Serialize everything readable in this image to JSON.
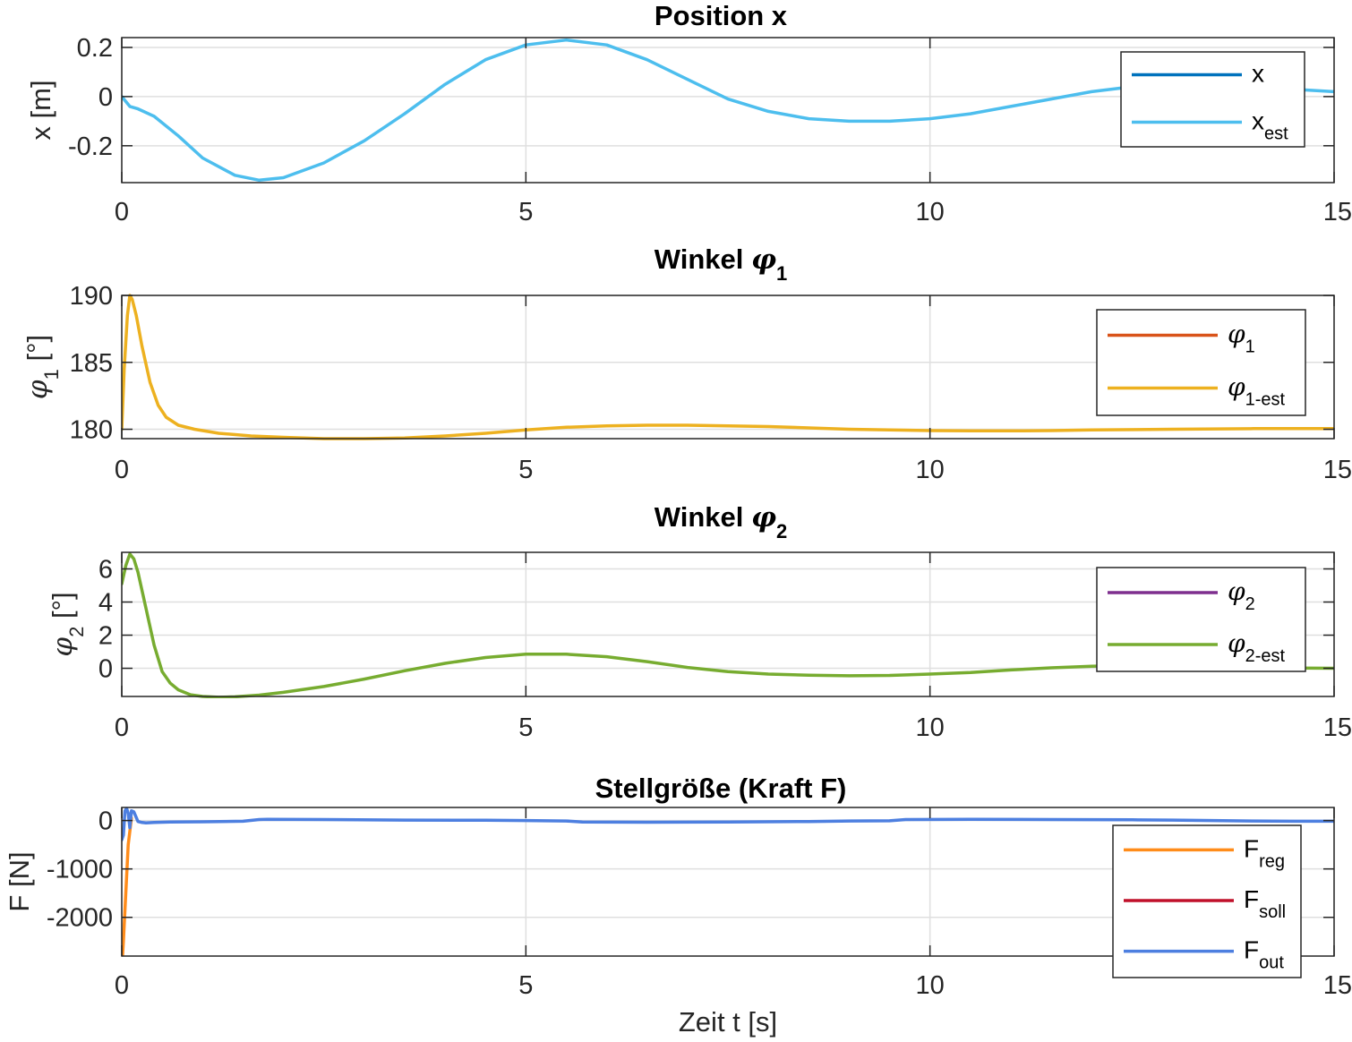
{
  "chart_data": [
    {
      "type": "line",
      "title": "Position x",
      "title_parts": [
        {
          "t": "Position x"
        }
      ],
      "ylabel_parts": [
        {
          "t": "x [m]"
        }
      ],
      "xlabel": "",
      "xlim": [
        0,
        15
      ],
      "ylim": [
        -0.35,
        0.24
      ],
      "xticks": [
        0,
        5,
        10,
        15
      ],
      "xticklabels": [
        "0",
        "5",
        "10",
        "15"
      ],
      "yticks": [
        -0.2,
        0,
        0.2
      ],
      "yticklabels": [
        "-0.2",
        "0",
        "0.2"
      ],
      "grid": true,
      "legend_position": "top-right",
      "series": [
        {
          "name_parts": [
            {
              "t": "x"
            }
          ],
          "color": "#0072BD",
          "visible": false,
          "x": [
            0,
            0.1,
            0.2,
            0.4,
            0.7,
            1.0,
            1.4,
            1.7,
            2.0,
            2.5,
            3.0,
            3.5,
            4.0,
            4.5,
            5.0,
            5.5,
            6.0,
            6.5,
            7.0,
            7.5,
            8.0,
            8.5,
            9.0,
            9.5,
            10.0,
            10.5,
            11.0,
            11.5,
            12.0,
            12.5,
            13.0,
            13.5,
            14.0,
            14.5,
            15.0
          ],
          "y": [
            0.0,
            -0.04,
            -0.05,
            -0.08,
            -0.16,
            -0.25,
            -0.32,
            -0.34,
            -0.33,
            -0.27,
            -0.18,
            -0.07,
            0.05,
            0.15,
            0.21,
            0.23,
            0.21,
            0.15,
            0.07,
            -0.01,
            -0.06,
            -0.09,
            -0.1,
            -0.1,
            -0.09,
            -0.07,
            -0.04,
            -0.01,
            0.02,
            0.04,
            0.045,
            0.045,
            0.04,
            0.03,
            0.02
          ]
        },
        {
          "name_parts": [
            {
              "t": "x"
            },
            {
              "t": "est",
              "sub": true
            }
          ],
          "color": "#4DBEEE",
          "visible": true,
          "x": [
            0,
            0.1,
            0.2,
            0.4,
            0.7,
            1.0,
            1.4,
            1.7,
            2.0,
            2.5,
            3.0,
            3.5,
            4.0,
            4.5,
            5.0,
            5.5,
            6.0,
            6.5,
            7.0,
            7.5,
            8.0,
            8.5,
            9.0,
            9.5,
            10.0,
            10.5,
            11.0,
            11.5,
            12.0,
            12.5,
            13.0,
            13.5,
            14.0,
            14.5,
            15.0
          ],
          "y": [
            0.0,
            -0.04,
            -0.05,
            -0.08,
            -0.16,
            -0.25,
            -0.32,
            -0.34,
            -0.33,
            -0.27,
            -0.18,
            -0.07,
            0.05,
            0.15,
            0.21,
            0.23,
            0.21,
            0.15,
            0.07,
            -0.01,
            -0.06,
            -0.09,
            -0.1,
            -0.1,
            -0.09,
            -0.07,
            -0.04,
            -0.01,
            0.02,
            0.04,
            0.045,
            0.045,
            0.04,
            0.03,
            0.02
          ]
        }
      ]
    },
    {
      "type": "line",
      "title": "Winkel φ1",
      "title_parts": [
        {
          "t": "Winkel "
        },
        {
          "t": "φ",
          "greek": true
        },
        {
          "t": "1",
          "sub": true
        }
      ],
      "ylabel_parts": [
        {
          "t": "φ",
          "greek": true
        },
        {
          "t": "1",
          "sub": true
        },
        {
          "t": " [°]"
        }
      ],
      "xlabel": "",
      "xlim": [
        0,
        15
      ],
      "ylim": [
        179.3,
        190.0
      ],
      "xticks": [
        0,
        5,
        10,
        15
      ],
      "xticklabels": [
        "0",
        "5",
        "10",
        "15"
      ],
      "yticks": [
        180,
        185,
        190
      ],
      "yticklabels": [
        "180",
        "185",
        "190"
      ],
      "grid": true,
      "legend_position": "top-right",
      "series": [
        {
          "name_parts": [
            {
              "t": "φ",
              "greek": true
            },
            {
              "t": "1",
              "sub": true
            }
          ],
          "color": "#D95319",
          "visible": false,
          "x": [
            0,
            0.03,
            0.07,
            0.1,
            0.13,
            0.18,
            0.25,
            0.35,
            0.45,
            0.55,
            0.7,
            0.9,
            1.2,
            1.6,
            2.0,
            2.5,
            3.0,
            3.5,
            4.0,
            4.5,
            5.0,
            5.5,
            6.0,
            6.5,
            7.0,
            7.5,
            8.0,
            8.5,
            9.0,
            9.5,
            10.0,
            10.5,
            11.0,
            11.5,
            12.0,
            13.0,
            14.0,
            15.0
          ],
          "y": [
            180.0,
            184.5,
            188.5,
            190.0,
            189.7,
            188.5,
            186.2,
            183.5,
            181.8,
            180.9,
            180.3,
            180.0,
            179.7,
            179.5,
            179.4,
            179.3,
            179.3,
            179.35,
            179.5,
            179.7,
            179.95,
            180.15,
            180.25,
            180.3,
            180.3,
            180.25,
            180.2,
            180.1,
            180.0,
            179.95,
            179.9,
            179.88,
            179.88,
            179.9,
            179.95,
            180.0,
            180.05,
            180.05
          ]
        },
        {
          "name_parts": [
            {
              "t": "φ",
              "greek": true
            },
            {
              "t": "1-est",
              "sub": true
            }
          ],
          "color": "#EDB120",
          "visible": true,
          "x": [
            0,
            0.03,
            0.07,
            0.1,
            0.13,
            0.18,
            0.25,
            0.35,
            0.45,
            0.55,
            0.7,
            0.9,
            1.2,
            1.6,
            2.0,
            2.5,
            3.0,
            3.5,
            4.0,
            4.5,
            5.0,
            5.5,
            6.0,
            6.5,
            7.0,
            7.5,
            8.0,
            8.5,
            9.0,
            9.5,
            10.0,
            10.5,
            11.0,
            11.5,
            12.0,
            13.0,
            14.0,
            15.0
          ],
          "y": [
            180.0,
            184.5,
            188.5,
            190.0,
            189.7,
            188.5,
            186.2,
            183.5,
            181.8,
            180.9,
            180.3,
            180.0,
            179.7,
            179.5,
            179.4,
            179.3,
            179.3,
            179.35,
            179.5,
            179.7,
            179.95,
            180.15,
            180.25,
            180.3,
            180.3,
            180.25,
            180.2,
            180.1,
            180.0,
            179.95,
            179.9,
            179.88,
            179.88,
            179.9,
            179.95,
            180.0,
            180.05,
            180.05
          ]
        }
      ]
    },
    {
      "type": "line",
      "title": "Winkel φ2",
      "title_parts": [
        {
          "t": "Winkel "
        },
        {
          "t": "φ",
          "greek": true
        },
        {
          "t": "2",
          "sub": true
        }
      ],
      "ylabel_parts": [
        {
          "t": "φ",
          "greek": true
        },
        {
          "t": "2",
          "sub": true
        },
        {
          "t": " [°]"
        }
      ],
      "xlabel": "",
      "xlim": [
        0,
        15
      ],
      "ylim": [
        -1.7,
        7.0
      ],
      "xticks": [
        0,
        5,
        10,
        15
      ],
      "xticklabels": [
        "0",
        "5",
        "10",
        "15"
      ],
      "yticks": [
        0,
        2,
        4,
        6
      ],
      "yticklabels": [
        "0",
        "2",
        "4",
        "6"
      ],
      "grid": true,
      "legend_position": "top-right",
      "series": [
        {
          "name_parts": [
            {
              "t": "φ",
              "greek": true
            },
            {
              "t": "2",
              "sub": true
            }
          ],
          "color": "#7E2F8E",
          "visible": false,
          "x": [
            0,
            0.05,
            0.1,
            0.15,
            0.2,
            0.3,
            0.4,
            0.5,
            0.6,
            0.7,
            0.85,
            1.0,
            1.2,
            1.4,
            1.7,
            2.0,
            2.5,
            3.0,
            3.5,
            4.0,
            4.5,
            5.0,
            5.5,
            6.0,
            6.5,
            7.0,
            7.5,
            8.0,
            8.5,
            9.0,
            9.5,
            10.0,
            10.5,
            11.0,
            11.5,
            12.0,
            12.5,
            13.0,
            13.5,
            14.0,
            14.5,
            15.0
          ],
          "y": [
            5.1,
            6.2,
            6.9,
            6.6,
            5.8,
            3.6,
            1.4,
            -0.2,
            -0.9,
            -1.3,
            -1.6,
            -1.7,
            -1.75,
            -1.72,
            -1.62,
            -1.45,
            -1.1,
            -0.65,
            -0.15,
            0.3,
            0.65,
            0.85,
            0.85,
            0.7,
            0.4,
            0.05,
            -0.2,
            -0.35,
            -0.42,
            -0.45,
            -0.43,
            -0.35,
            -0.25,
            -0.1,
            0.03,
            0.12,
            0.18,
            0.18,
            0.12,
            0.06,
            0.02,
            0.0
          ]
        },
        {
          "name_parts": [
            {
              "t": "φ",
              "greek": true
            },
            {
              "t": "2-est",
              "sub": true
            }
          ],
          "color": "#77AC30",
          "visible": true,
          "x": [
            0,
            0.05,
            0.1,
            0.15,
            0.2,
            0.3,
            0.4,
            0.5,
            0.6,
            0.7,
            0.85,
            1.0,
            1.2,
            1.4,
            1.7,
            2.0,
            2.5,
            3.0,
            3.5,
            4.0,
            4.5,
            5.0,
            5.5,
            6.0,
            6.5,
            7.0,
            7.5,
            8.0,
            8.5,
            9.0,
            9.5,
            10.0,
            10.5,
            11.0,
            11.5,
            12.0,
            12.5,
            13.0,
            13.5,
            14.0,
            14.5,
            15.0
          ],
          "y": [
            5.1,
            6.2,
            6.9,
            6.6,
            5.8,
            3.6,
            1.4,
            -0.2,
            -0.9,
            -1.3,
            -1.6,
            -1.7,
            -1.75,
            -1.72,
            -1.62,
            -1.45,
            -1.1,
            -0.65,
            -0.15,
            0.3,
            0.65,
            0.85,
            0.85,
            0.7,
            0.4,
            0.05,
            -0.2,
            -0.35,
            -0.42,
            -0.45,
            -0.43,
            -0.35,
            -0.25,
            -0.1,
            0.03,
            0.12,
            0.18,
            0.18,
            0.12,
            0.06,
            0.02,
            0.0
          ]
        }
      ]
    },
    {
      "type": "line",
      "title": "Stellgröße (Kraft F)",
      "title_parts": [
        {
          "t": "Stellgröße (Kraft F)"
        }
      ],
      "ylabel_parts": [
        {
          "t": "F [N]"
        }
      ],
      "xlabel": "Zeit t [s]",
      "xlim": [
        0,
        15
      ],
      "ylim": [
        -2800,
        270
      ],
      "xticks": [
        0,
        5,
        10,
        15
      ],
      "xticklabels": [
        "0",
        "5",
        "10",
        "15"
      ],
      "yticks": [
        -2000,
        -1000,
        0
      ],
      "yticklabels": [
        "-2000",
        "-1000",
        "0"
      ],
      "grid": true,
      "legend_position": "bottom-right",
      "series": [
        {
          "name_parts": [
            {
              "t": "F"
            },
            {
              "t": "reg",
              "sub": true
            }
          ],
          "color": "#FF8C1A",
          "visible": true,
          "x": [
            0,
            0.01,
            0.02,
            0.05,
            0.08,
            0.12
          ],
          "y": [
            -2780,
            -2780,
            -2500,
            -1500,
            -500,
            50
          ]
        },
        {
          "name_parts": [
            {
              "t": "F"
            },
            {
              "t": "soll",
              "sub": true
            }
          ],
          "color": "#C0102A",
          "visible": false,
          "x": [
            0,
            15
          ],
          "y": [
            0,
            0
          ]
        },
        {
          "name_parts": [
            {
              "t": "F"
            },
            {
              "t": "out",
              "sub": true
            }
          ],
          "color": "#4D7FE0",
          "visible": true,
          "x": [
            0,
            0.02,
            0.04,
            0.06,
            0.08,
            0.1,
            0.12,
            0.15,
            0.2,
            0.25,
            0.3,
            0.4,
            0.6,
            1.0,
            1.5,
            1.7,
            1.8,
            2.5,
            3.5,
            4.5,
            5.0,
            5.5,
            5.7,
            6.5,
            7.5,
            8.5,
            9.0,
            9.5,
            9.7,
            10.5,
            11.5,
            12.5,
            13.0,
            13.5,
            14.0,
            14.5,
            15.0
          ],
          "y": [
            -400,
            -300,
            200,
            250,
            150,
            -150,
            200,
            180,
            -20,
            -40,
            -50,
            -40,
            -30,
            -25,
            -15,
            20,
            25,
            20,
            10,
            5,
            0,
            -10,
            -30,
            -35,
            -30,
            -20,
            -10,
            -5,
            20,
            25,
            20,
            15,
            10,
            0,
            -10,
            -15,
            -15
          ]
        }
      ]
    }
  ]
}
